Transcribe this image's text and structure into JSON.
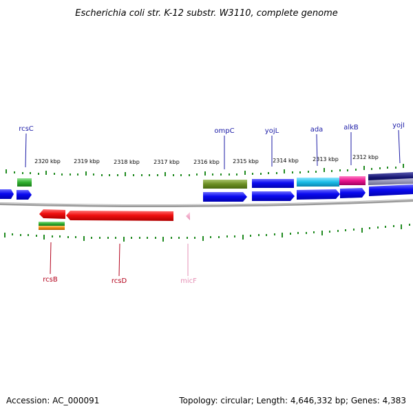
{
  "title": "Escherichia coli str. K-12 substr. W3110, complete genome",
  "footer": {
    "accession": "Accession: AC_000091",
    "stats": "Topology: circular; Length: 4,646,332 bp; Genes: 4,383"
  },
  "scale_labels": [
    "2320 kbp",
    "2319 kbp",
    "2318 kbp",
    "2317 kbp",
    "2316 kbp",
    "2315 kbp",
    "2314 kbp",
    "2313 kbp",
    "2312 kbp"
  ],
  "top_labels": [
    {
      "name": "rcsC",
      "color": "#1a1aa6"
    },
    {
      "name": "ompC",
      "color": "#1a1aa6"
    },
    {
      "name": "yojL",
      "color": "#1a1aa6"
    },
    {
      "name": "ada",
      "color": "#1a1aa6"
    },
    {
      "name": "alkB",
      "color": "#1a1aa6"
    },
    {
      "name": "yojI",
      "color": "#1a1aa6"
    }
  ],
  "bottom_labels": [
    {
      "name": "rcsB",
      "color": "#b3001b"
    },
    {
      "name": "rcsD",
      "color": "#b3001b"
    },
    {
      "name": "micF",
      "color": "#e58fb5"
    }
  ],
  "colors": {
    "cds_blue": "#0a0af0",
    "cds_red": "#f01010",
    "green": "#33bb33",
    "olive": "#6b8e23",
    "cyan": "#19bde8",
    "magenta": "#e8138c",
    "navy": "#141470",
    "tick_green": "#1f8a1f",
    "backbone": "#8a8a8a"
  }
}
